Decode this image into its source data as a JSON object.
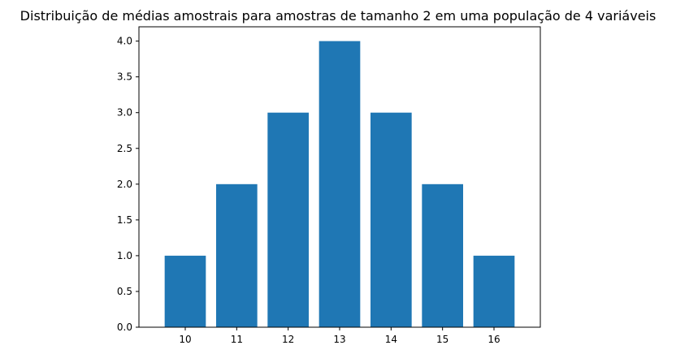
{
  "chart_data": {
    "type": "bar",
    "title": "Distribuição de médias amostrais para amostras de tamanho 2 em uma população de 4 variáveis",
    "xlabel": "",
    "ylabel": "",
    "categories": [
      "10",
      "11",
      "12",
      "13",
      "14",
      "15",
      "16"
    ],
    "values": [
      1,
      2,
      3,
      4,
      3,
      2,
      1
    ],
    "ylim": [
      0,
      4.2
    ],
    "yticks": [
      "0.0",
      "0.5",
      "1.0",
      "1.5",
      "2.0",
      "2.5",
      "3.0",
      "3.5",
      "4.0"
    ],
    "grid": false,
    "bar_color": "#1f77b4"
  }
}
